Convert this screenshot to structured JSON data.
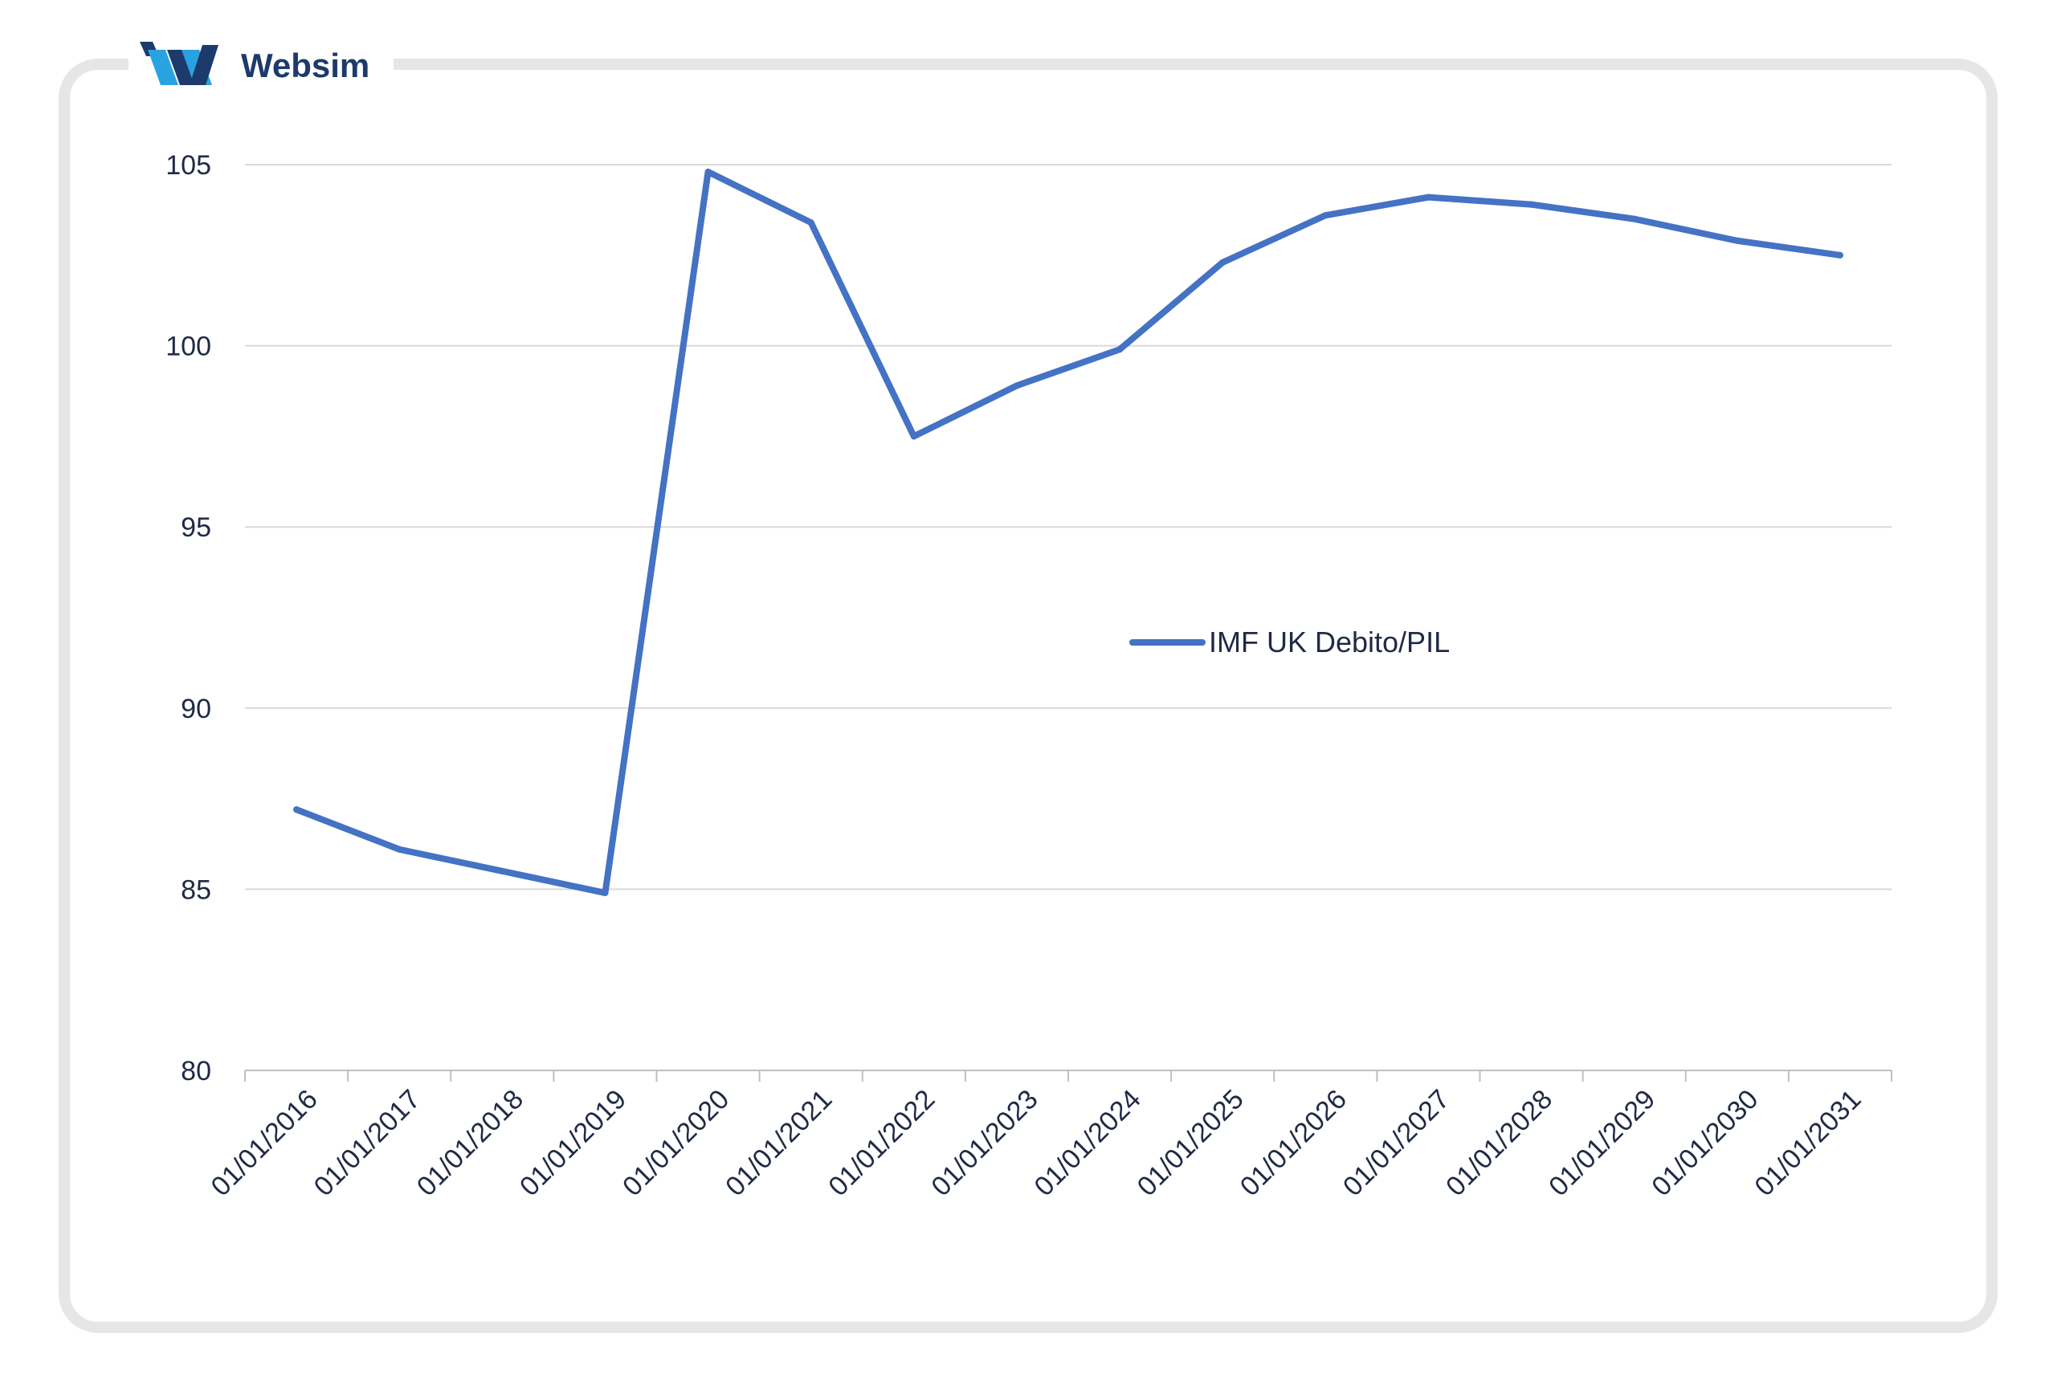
{
  "brand": {
    "name": "Websim",
    "logo_icon": "websim-logo-icon",
    "colors": {
      "dark": "#1c3a6b",
      "light": "#29a3e0"
    }
  },
  "chart_data": {
    "type": "line",
    "title": "",
    "xlabel": "",
    "ylabel": "",
    "categories": [
      "01/01/2016",
      "01/01/2017",
      "01/01/2018",
      "01/01/2019",
      "01/01/2020",
      "01/01/2021",
      "01/01/2022",
      "01/01/2023",
      "01/01/2024",
      "01/01/2025",
      "01/01/2026",
      "01/01/2027",
      "01/01/2028",
      "01/01/2029",
      "01/01/2030",
      "01/01/2031"
    ],
    "series": [
      {
        "name": "IMF UK Debito/PIL",
        "color": "#4472c4",
        "values": [
          87.2,
          86.1,
          85.5,
          84.9,
          104.8,
          103.4,
          97.5,
          98.9,
          99.9,
          102.3,
          103.6,
          104.1,
          103.9,
          103.5,
          102.9,
          102.5
        ]
      }
    ],
    "ylim": [
      80,
      105
    ],
    "yticks": [
      80,
      85,
      90,
      95,
      100,
      105
    ],
    "ytick_labels": [
      "80",
      "85",
      "90",
      "95",
      "100",
      "105"
    ],
    "grid": true,
    "legend_position": "center"
  }
}
